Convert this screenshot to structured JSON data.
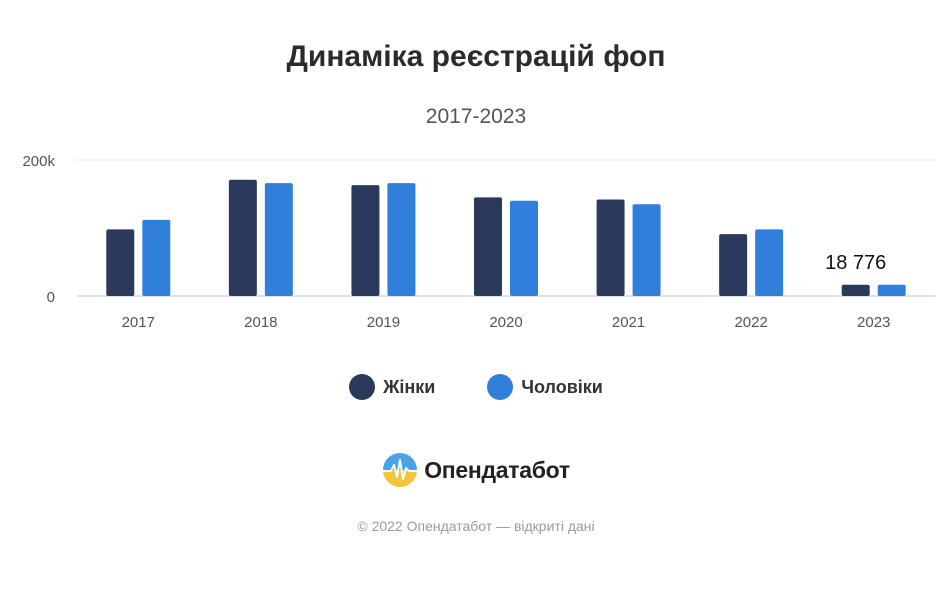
{
  "chart_data": {
    "type": "bar",
    "title": "Динаміка реєстрацій фоп",
    "subtitle": "2017-2023",
    "categories": [
      "2017",
      "2018",
      "2019",
      "2020",
      "2021",
      "2022",
      "2023"
    ],
    "series": [
      {
        "name": "Жінки",
        "color": "#2b3a5c",
        "values": [
          98000,
          171000,
          163000,
          145000,
          142000,
          91000,
          16500
        ]
      },
      {
        "name": "Чоловіки",
        "color": "#2f7fdb",
        "values": [
          112000,
          166000,
          166000,
          140000,
          135000,
          98000,
          16500
        ]
      }
    ],
    "y_ticks": [
      {
        "value": 0,
        "label": "0"
      },
      {
        "value": 200000,
        "label": "200k"
      }
    ],
    "ylim": [
      0,
      200000
    ],
    "annotations": [
      {
        "category": "2023",
        "text": "18 776"
      }
    ],
    "legend": "bottom",
    "grid": true
  },
  "brand": {
    "name": "Опендатабот",
    "icon": "opendatabot-logo-icon"
  },
  "footer": {
    "copyright": "© 2022 Опендатабот — відкриті дані"
  }
}
